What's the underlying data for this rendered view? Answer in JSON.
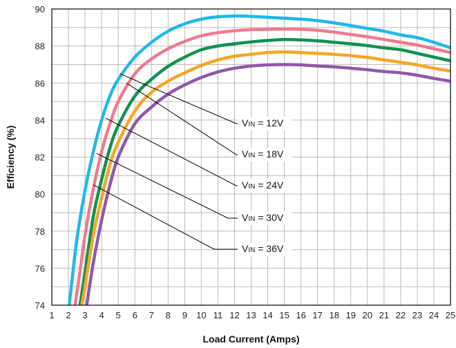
{
  "chart_data": {
    "type": "line",
    "xlabel": "Load Current (Amps)",
    "ylabel": "Efficiency (%)",
    "xlim": [
      1,
      25
    ],
    "ylim": [
      74,
      90
    ],
    "x_ticks": [
      "1",
      "2",
      "3",
      "4",
      "5",
      "6",
      "7",
      "8",
      "9",
      "10",
      "11",
      "12",
      "13",
      "14",
      "15",
      "16",
      "17",
      "18",
      "19",
      "20",
      "21",
      "22",
      "23",
      "24",
      "25"
    ],
    "y_ticks": [
      "74",
      "76",
      "78",
      "80",
      "82",
      "84",
      "86",
      "88",
      "90"
    ],
    "grid": true,
    "series": [
      {
        "name": "VIN = 12V",
        "label_prefix": "V",
        "label_sub": "IN",
        "label_suffix": " = 12V",
        "color": "#1fb8e8",
        "anchor": [
          5.1,
          86.5
        ],
        "points": [
          [
            2.05,
            74
          ],
          [
            2.5,
            77.5
          ],
          [
            3,
            80.2
          ],
          [
            3.5,
            82.3
          ],
          [
            4,
            84
          ],
          [
            4.5,
            85.3
          ],
          [
            5,
            86.2
          ],
          [
            6,
            87.4
          ],
          [
            7,
            88.2
          ],
          [
            8,
            88.8
          ],
          [
            9,
            89.2
          ],
          [
            10,
            89.45
          ],
          [
            11,
            89.58
          ],
          [
            12,
            89.62
          ],
          [
            13,
            89.6
          ],
          [
            14,
            89.55
          ],
          [
            15,
            89.5
          ],
          [
            16,
            89.45
          ],
          [
            17,
            89.37
          ],
          [
            18,
            89.25
          ],
          [
            19,
            89.1
          ],
          [
            20,
            88.95
          ],
          [
            21,
            88.8
          ],
          [
            22,
            88.6
          ],
          [
            23,
            88.45
          ],
          [
            24,
            88.2
          ],
          [
            25,
            87.9
          ]
        ]
      },
      {
        "name": "VIN = 18V",
        "label_prefix": "V",
        "label_sub": "IN",
        "label_suffix": " = 18V",
        "color": "#ee7a8e",
        "anchor": [
          5.5,
          86.0
        ],
        "points": [
          [
            2.4,
            74
          ],
          [
            2.8,
            76.5
          ],
          [
            3,
            77.8
          ],
          [
            3.5,
            80.3
          ],
          [
            4,
            82.3
          ],
          [
            4.5,
            83.8
          ],
          [
            5,
            85
          ],
          [
            6,
            86.5
          ],
          [
            7,
            87.3
          ],
          [
            8,
            87.85
          ],
          [
            9,
            88.25
          ],
          [
            10,
            88.55
          ],
          [
            11,
            88.72
          ],
          [
            12,
            88.82
          ],
          [
            13,
            88.88
          ],
          [
            14,
            88.9
          ],
          [
            15,
            88.92
          ],
          [
            16,
            88.9
          ],
          [
            17,
            88.85
          ],
          [
            18,
            88.75
          ],
          [
            19,
            88.62
          ],
          [
            20,
            88.5
          ],
          [
            21,
            88.35
          ],
          [
            22,
            88.2
          ],
          [
            23,
            88.05
          ],
          [
            24,
            87.85
          ],
          [
            25,
            87.65
          ]
        ]
      },
      {
        "name": "VIN = 24V",
        "label_prefix": "V",
        "label_sub": "IN",
        "label_suffix": " = 24V",
        "color": "#119150",
        "anchor": [
          4.25,
          84.1
        ],
        "points": [
          [
            2.7,
            74
          ],
          [
            3,
            75.8
          ],
          [
            3.5,
            78.8
          ],
          [
            4,
            80.8
          ],
          [
            4.5,
            82.5
          ],
          [
            5,
            83.7
          ],
          [
            6,
            85.3
          ],
          [
            7,
            86.2
          ],
          [
            8,
            86.9
          ],
          [
            9,
            87.4
          ],
          [
            10,
            87.8
          ],
          [
            11,
            88
          ],
          [
            12,
            88.12
          ],
          [
            13,
            88.22
          ],
          [
            14,
            88.3
          ],
          [
            15,
            88.35
          ],
          [
            16,
            88.33
          ],
          [
            17,
            88.28
          ],
          [
            18,
            88.2
          ],
          [
            19,
            88.12
          ],
          [
            20,
            88.02
          ],
          [
            21,
            87.9
          ],
          [
            22,
            87.8
          ],
          [
            23,
            87.6
          ],
          [
            24,
            87.4
          ],
          [
            25,
            87.2
          ]
        ]
      },
      {
        "name": "VIN = 30V",
        "label_prefix": "V",
        "label_sub": "IN",
        "label_suffix": " = 30V",
        "color": "#f5a623",
        "anchor": [
          3.7,
          82.2
        ],
        "points": [
          [
            2.8,
            74
          ],
          [
            3,
            75
          ],
          [
            3.5,
            77.8
          ],
          [
            4,
            79.8
          ],
          [
            4.5,
            81.6
          ],
          [
            5,
            82.8
          ],
          [
            6,
            84.5
          ],
          [
            7,
            85.5
          ],
          [
            8,
            86.1
          ],
          [
            9,
            86.55
          ],
          [
            10,
            86.95
          ],
          [
            11,
            87.25
          ],
          [
            12,
            87.45
          ],
          [
            13,
            87.55
          ],
          [
            14,
            87.65
          ],
          [
            15,
            87.68
          ],
          [
            16,
            87.65
          ],
          [
            17,
            87.6
          ],
          [
            18,
            87.55
          ],
          [
            19,
            87.48
          ],
          [
            20,
            87.38
          ],
          [
            21,
            87.25
          ],
          [
            22,
            87.12
          ],
          [
            23,
            86.98
          ],
          [
            24,
            86.8
          ],
          [
            25,
            86.65
          ]
        ]
      },
      {
        "name": "VIN = 36V",
        "label_prefix": "V",
        "label_sub": "IN",
        "label_suffix": " = 36V",
        "color": "#9057a8",
        "anchor": [
          3.5,
          80.5
        ],
        "points": [
          [
            3.1,
            74
          ],
          [
            3.5,
            76.3
          ],
          [
            4,
            78.6
          ],
          [
            4.5,
            80.5
          ],
          [
            5,
            82
          ],
          [
            6,
            83.8
          ],
          [
            7,
            84.7
          ],
          [
            8,
            85.4
          ],
          [
            9,
            85.9
          ],
          [
            10,
            86.3
          ],
          [
            11,
            86.6
          ],
          [
            12,
            86.8
          ],
          [
            13,
            86.92
          ],
          [
            14,
            86.98
          ],
          [
            15,
            87
          ],
          [
            16,
            86.98
          ],
          [
            17,
            86.92
          ],
          [
            18,
            86.87
          ],
          [
            19,
            86.8
          ],
          [
            20,
            86.72
          ],
          [
            21,
            86.62
          ],
          [
            22,
            86.55
          ],
          [
            23,
            86.42
          ],
          [
            24,
            86.25
          ],
          [
            25,
            86.1
          ]
        ]
      }
    ],
    "annotations_extra_anchor": [
      4.1,
      78.7
    ]
  }
}
